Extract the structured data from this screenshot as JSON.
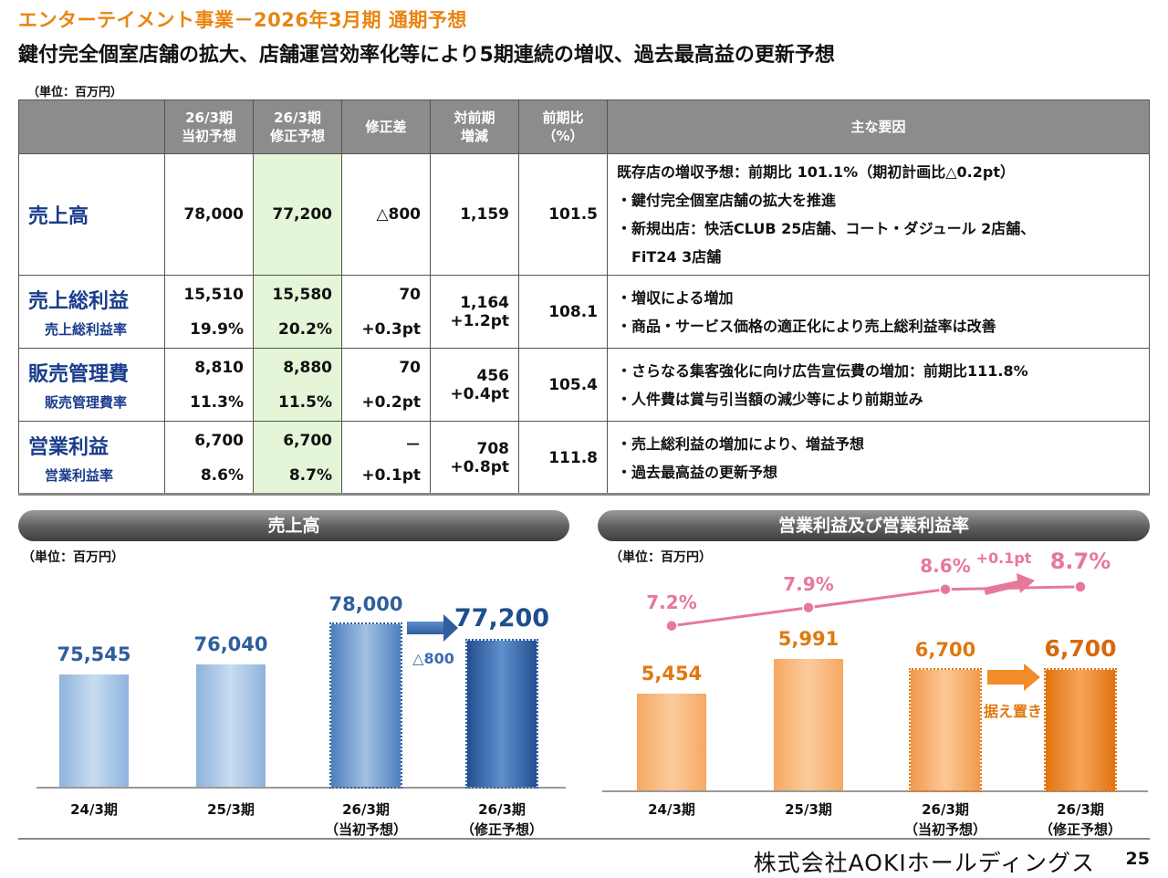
{
  "header": {
    "title": "エンターテイメント事業－2026年3月期 通期予想",
    "subtitle": "鍵付完全個室店舗の拡大、店舗運営効率化等により5期連続の増収、過去最高益の更新予想",
    "unit": "（単位：百万円）"
  },
  "table": {
    "headers": {
      "initial": "26/3期\n当初予想",
      "revised": "26/3期\n修正予想",
      "diff": "修正差",
      "yoy": "対前期\n増減",
      "ratio": "前期比\n（%）",
      "factors": "主な要因"
    },
    "rows": {
      "sales": {
        "label": "売上高",
        "initial": "78,000",
        "revised": "77,200",
        "diff": "△800",
        "yoy": "1,159",
        "ratio": "101.5",
        "factors": [
          "既存店の増収予想：前期比 101.1%（期初計画比△0.2pt）",
          "・鍵付完全個室店舗の拡大を推進",
          "・新規出店：快活CLUB 25店舗、コート・ダジュール 2店舗、",
          "　FiT24 3店舗"
        ]
      },
      "gross": {
        "label": "売上総利益",
        "sublabel": "売上総利益率",
        "initial": "15,510",
        "initial_rate": "19.9%",
        "revised": "15,580",
        "revised_rate": "20.2%",
        "diff": "70",
        "diff_rate": "+0.3pt",
        "yoy": "1,164",
        "yoy_rate": "+1.2pt",
        "ratio": "108.1",
        "factors": [
          "・増収による増加",
          "・商品・サービス価格の適正化により売上総利益率は改善"
        ]
      },
      "sga": {
        "label": "販売管理費",
        "sublabel": "販売管理費率",
        "initial": "8,810",
        "initial_rate": "11.3%",
        "revised": "8,880",
        "revised_rate": "11.5%",
        "diff": "70",
        "diff_rate": "+0.2pt",
        "yoy": "456",
        "yoy_rate": "+0.4pt",
        "ratio": "105.4",
        "factors": [
          "・さらなる集客強化に向け広告宣伝費の増加：前期比111.8%",
          "・人件費は賞与引当額の減少等により前期並み"
        ]
      },
      "op": {
        "label": "営業利益",
        "sublabel": "営業利益率",
        "initial": "6,700",
        "initial_rate": "8.6%",
        "revised": "6,700",
        "revised_rate": "8.7%",
        "diff": "－",
        "diff_rate": "+0.1pt",
        "yoy": "708",
        "yoy_rate": "+0.8pt",
        "ratio": "111.8",
        "factors": [
          "・売上総利益の増加により、増益予想",
          "・過去最高益の更新予想"
        ]
      }
    }
  },
  "charts": {
    "sales": {
      "title": "売上高",
      "unit": "（単位：百万円）",
      "diff_label": "△800"
    },
    "op": {
      "title": "営業利益及び営業利益率",
      "unit": "（単位：百万円）",
      "rate_diff_label": "+0.1pt",
      "flat_label": "据え置き"
    }
  },
  "chart_data": [
    {
      "type": "bar",
      "title": "売上高",
      "categories": [
        "24/3期",
        "25/3期",
        "26/3期\n（当初予想）",
        "26/3期\n（修正予想）"
      ],
      "values": [
        75545,
        76040,
        78000,
        77200
      ],
      "value_labels": [
        "75,545",
        "76,040",
        "78,000",
        "77,200"
      ],
      "ylabel": "",
      "colors": [
        "#A7C4E4",
        "#A7C4E4",
        "#5F8EC7",
        "#2F5E9E"
      ]
    },
    {
      "type": "bar",
      "title": "営業利益及び営業利益率",
      "categories": [
        "24/3期",
        "25/3期",
        "26/3期\n（当初予想）",
        "26/3期\n（修正予想）"
      ],
      "series": [
        {
          "name": "営業利益",
          "values": [
            5454,
            5991,
            6700,
            6700
          ],
          "value_labels": [
            "5,454",
            "5,991",
            "6,700",
            "6,700"
          ]
        },
        {
          "name": "営業利益率",
          "values": [
            7.2,
            7.9,
            8.6,
            8.7
          ],
          "value_labels": [
            "7.2%",
            "7.9%",
            "8.6%",
            "8.7%"
          ]
        }
      ],
      "colors": {
        "bar": "#F5A55A",
        "bar_strong": "#EE7F1A",
        "line": "#E8789A"
      }
    }
  ],
  "footer": {
    "company": "株式会社AOKIホールディングス",
    "page": "25"
  }
}
